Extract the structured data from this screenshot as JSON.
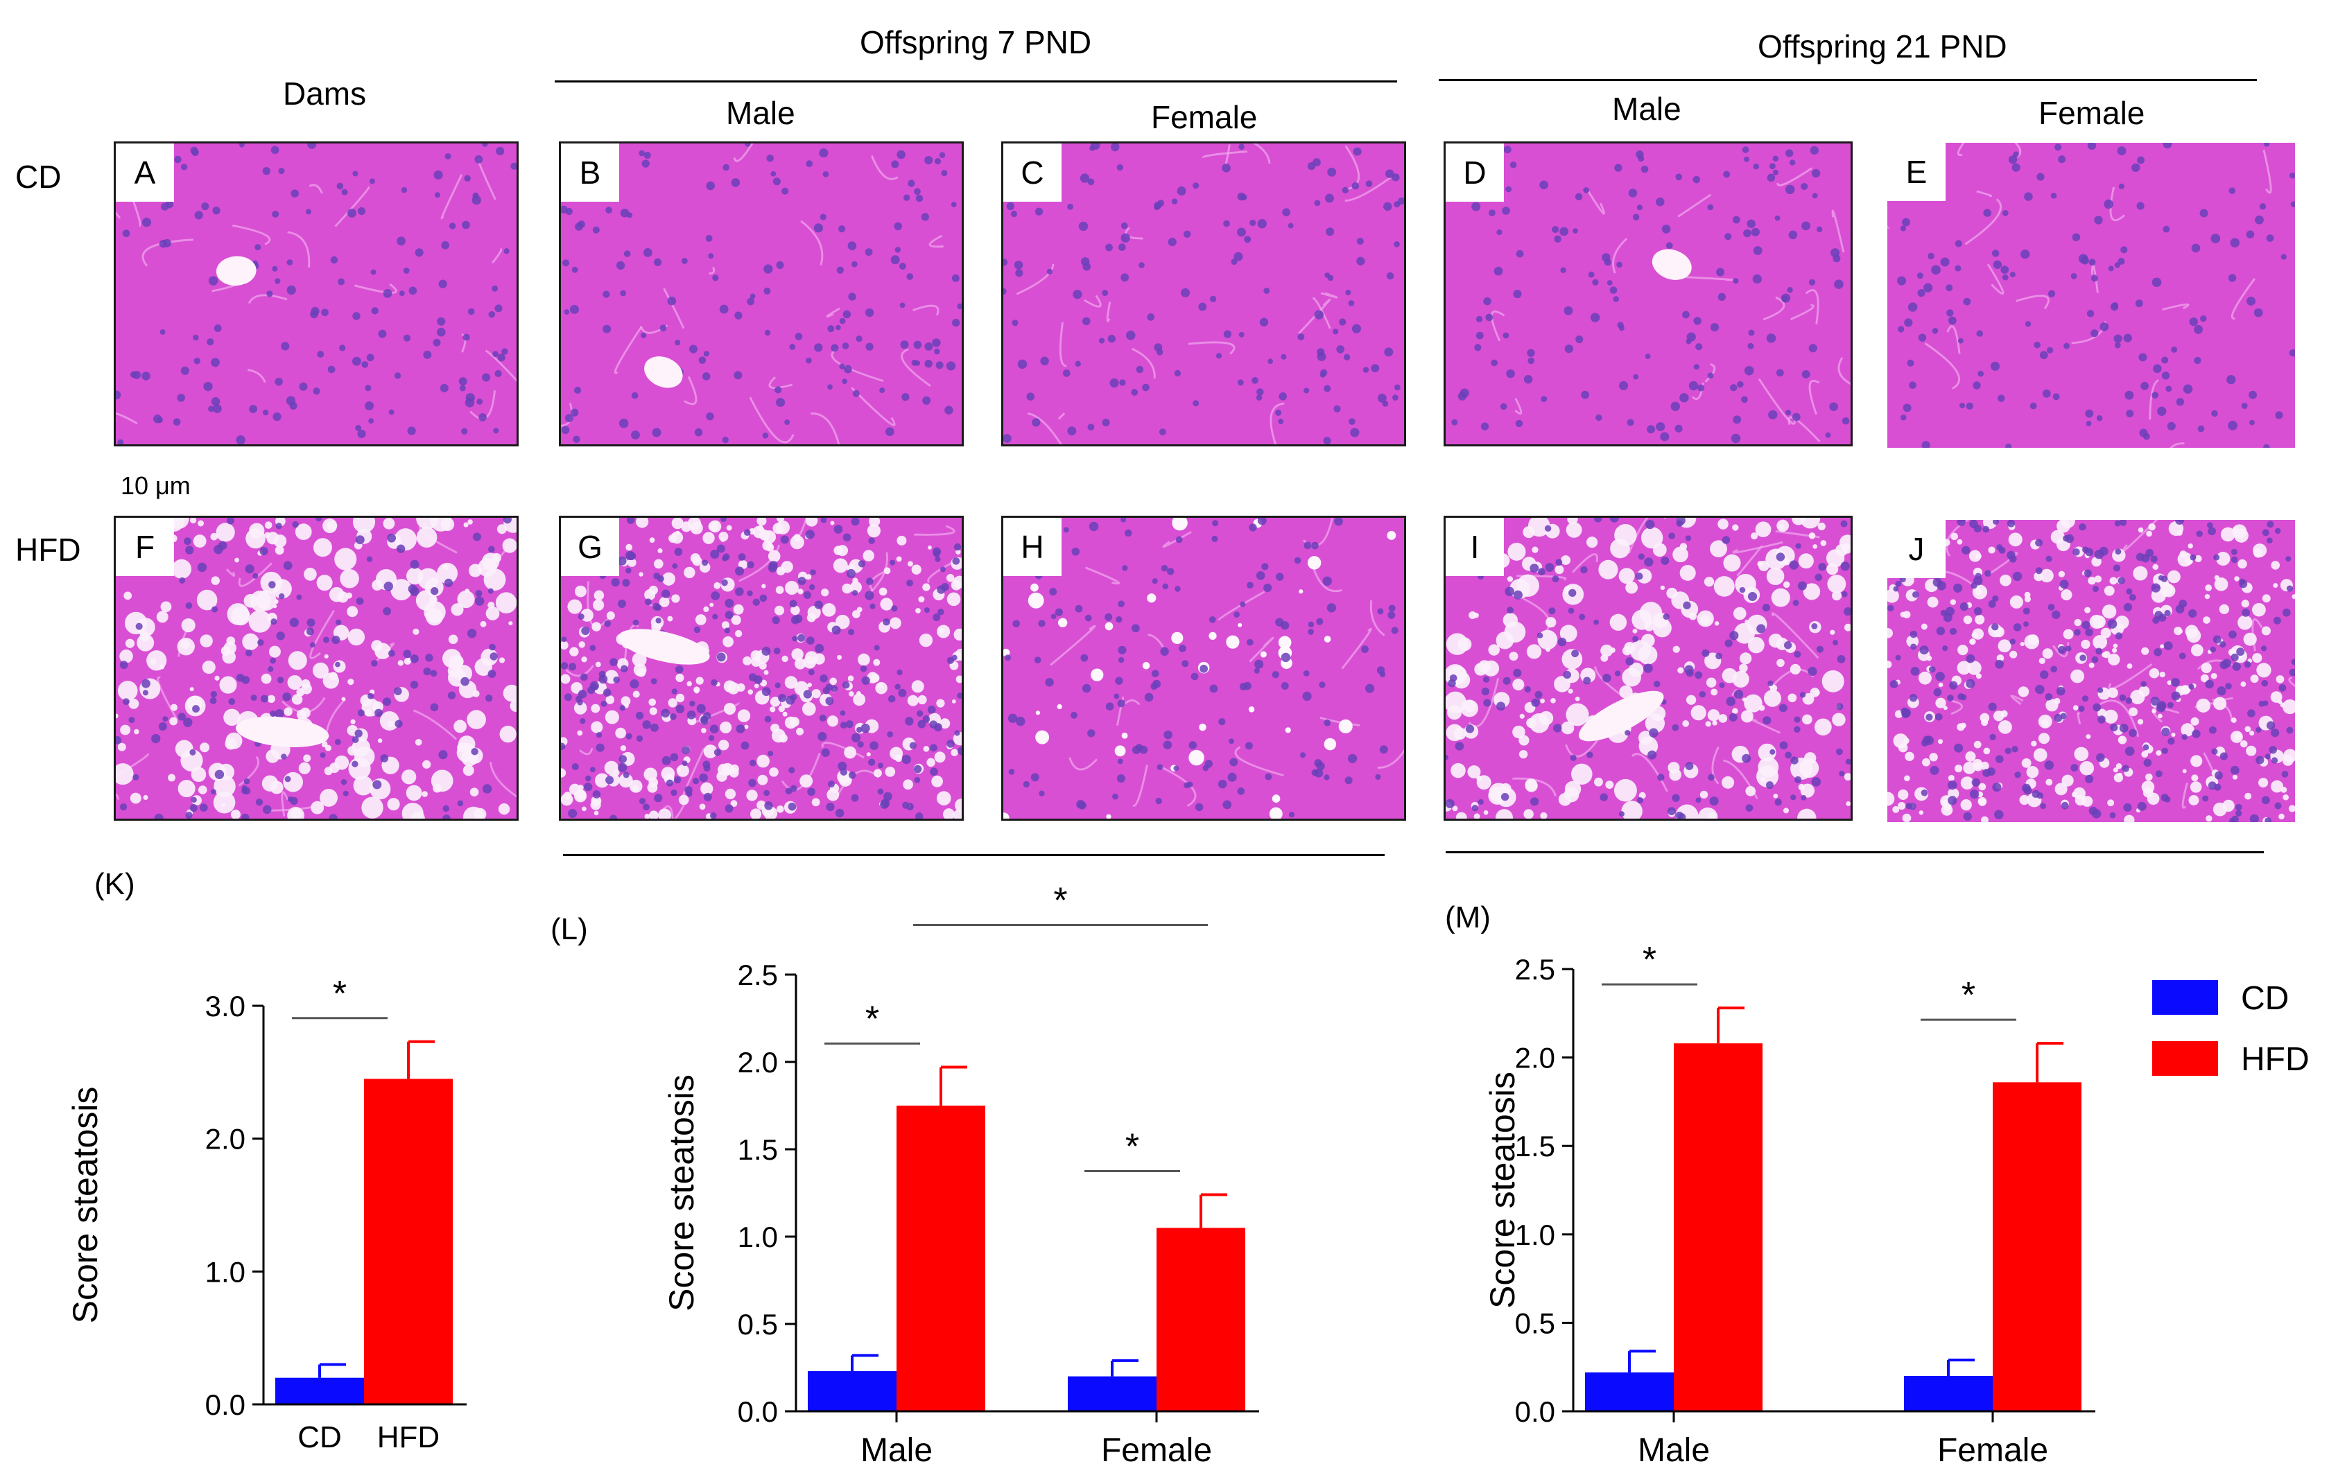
{
  "headers": {
    "dams": "Dams",
    "offspring_7": "Offspring 7 PND",
    "offspring_21": "Offspring 21 PND",
    "male_7": "Male",
    "female_7": "Female",
    "male_21": "Male",
    "female_21": "Female"
  },
  "rows": {
    "cd": "CD",
    "hfd": "HFD"
  },
  "scale_bar": "10  μm",
  "panels": [
    {
      "id": "A",
      "label": "A",
      "group": "CD",
      "tone": "cd"
    },
    {
      "id": "B",
      "label": "B",
      "group": "CD",
      "tone": "cd"
    },
    {
      "id": "C",
      "label": "C",
      "group": "CD",
      "tone": "cd"
    },
    {
      "id": "D",
      "label": "D",
      "group": "CD",
      "tone": "cd"
    },
    {
      "id": "E",
      "label": "E",
      "group": "CD",
      "tone": "cd"
    },
    {
      "id": "F",
      "label": "F",
      "group": "HFD",
      "tone": "fatty"
    },
    {
      "id": "G",
      "label": "G",
      "group": "HFD",
      "tone": "dense"
    },
    {
      "id": "H",
      "label": "H",
      "group": "HFD",
      "tone": "cd"
    },
    {
      "id": "I",
      "label": "I",
      "group": "HFD",
      "tone": "fatty"
    },
    {
      "id": "J",
      "label": "J",
      "group": "HFD",
      "tone": "dense"
    }
  ],
  "colors": {
    "cd": "#0a0aff",
    "hfd": "#ff0000",
    "tissue": "#d84fd4",
    "nuclei": "#6a3fb8"
  },
  "legend": [
    {
      "name": "CD",
      "color": "#0a0aff"
    },
    {
      "name": "HFD",
      "color": "#ff0000"
    }
  ],
  "chart_data": [
    {
      "id": "K",
      "panel_label": "(K)",
      "type": "bar",
      "ylabel": "Score steatosis",
      "ylim": [
        0,
        3.0
      ],
      "yticks": [
        0,
        1.0,
        2.0,
        3.0
      ],
      "ytick_labels": [
        "0.0",
        "1.0",
        "2.0",
        "3.0"
      ],
      "categories": [
        ""
      ],
      "bar_labels": [
        "CD",
        "HFD"
      ],
      "series": [
        {
          "name": "CD",
          "values": [
            0.2
          ],
          "errors": [
            0.1
          ]
        },
        {
          "name": "HFD",
          "values": [
            2.45
          ],
          "errors": [
            0.28
          ]
        }
      ],
      "significance": [
        {
          "mark": "*",
          "between": [
            [
              0,
              0
            ],
            [
              0,
              1
            ]
          ]
        }
      ]
    },
    {
      "id": "L",
      "panel_label": "(L)",
      "type": "bar",
      "ylabel": "Score steatosis",
      "ylim": [
        0,
        2.5
      ],
      "yticks": [
        0,
        0.5,
        1.0,
        1.5,
        2.0,
        2.5
      ],
      "ytick_labels": [
        "0.0",
        "0.5",
        "1.0",
        "1.5",
        "2.0",
        "2.5"
      ],
      "categories": [
        "Male",
        "Female"
      ],
      "series": [
        {
          "name": "CD",
          "values": [
            0.23,
            0.2
          ],
          "errors": [
            0.09,
            0.09
          ]
        },
        {
          "name": "HFD",
          "values": [
            1.75,
            1.05
          ],
          "errors": [
            0.22,
            0.19
          ]
        }
      ],
      "significance": [
        {
          "mark": "*",
          "between": [
            [
              0,
              0
            ],
            [
              0,
              1
            ]
          ]
        },
        {
          "mark": "*",
          "between": [
            [
              1,
              0
            ],
            [
              1,
              1
            ]
          ]
        },
        {
          "mark": "*",
          "between": [
            [
              0,
              1
            ],
            [
              1,
              1
            ]
          ]
        }
      ]
    },
    {
      "id": "M",
      "panel_label": "(M)",
      "type": "bar",
      "ylabel": "Score steatosis",
      "ylim": [
        0,
        2.5
      ],
      "yticks": [
        0,
        0.5,
        1.0,
        1.5,
        2.0,
        2.5
      ],
      "ytick_labels": [
        "0.0",
        "0.5",
        "1.0",
        "1.5",
        "2.0",
        "2.5"
      ],
      "categories": [
        "Male",
        "Female"
      ],
      "series": [
        {
          "name": "CD",
          "values": [
            0.22,
            0.2
          ],
          "errors": [
            0.12,
            0.09
          ]
        },
        {
          "name": "HFD",
          "values": [
            2.08,
            1.86
          ],
          "errors": [
            0.2,
            0.22
          ]
        }
      ],
      "significance": [
        {
          "mark": "*",
          "between": [
            [
              0,
              0
            ],
            [
              0,
              1
            ]
          ]
        },
        {
          "mark": "*",
          "between": [
            [
              1,
              0
            ],
            [
              1,
              1
            ]
          ]
        }
      ]
    }
  ]
}
